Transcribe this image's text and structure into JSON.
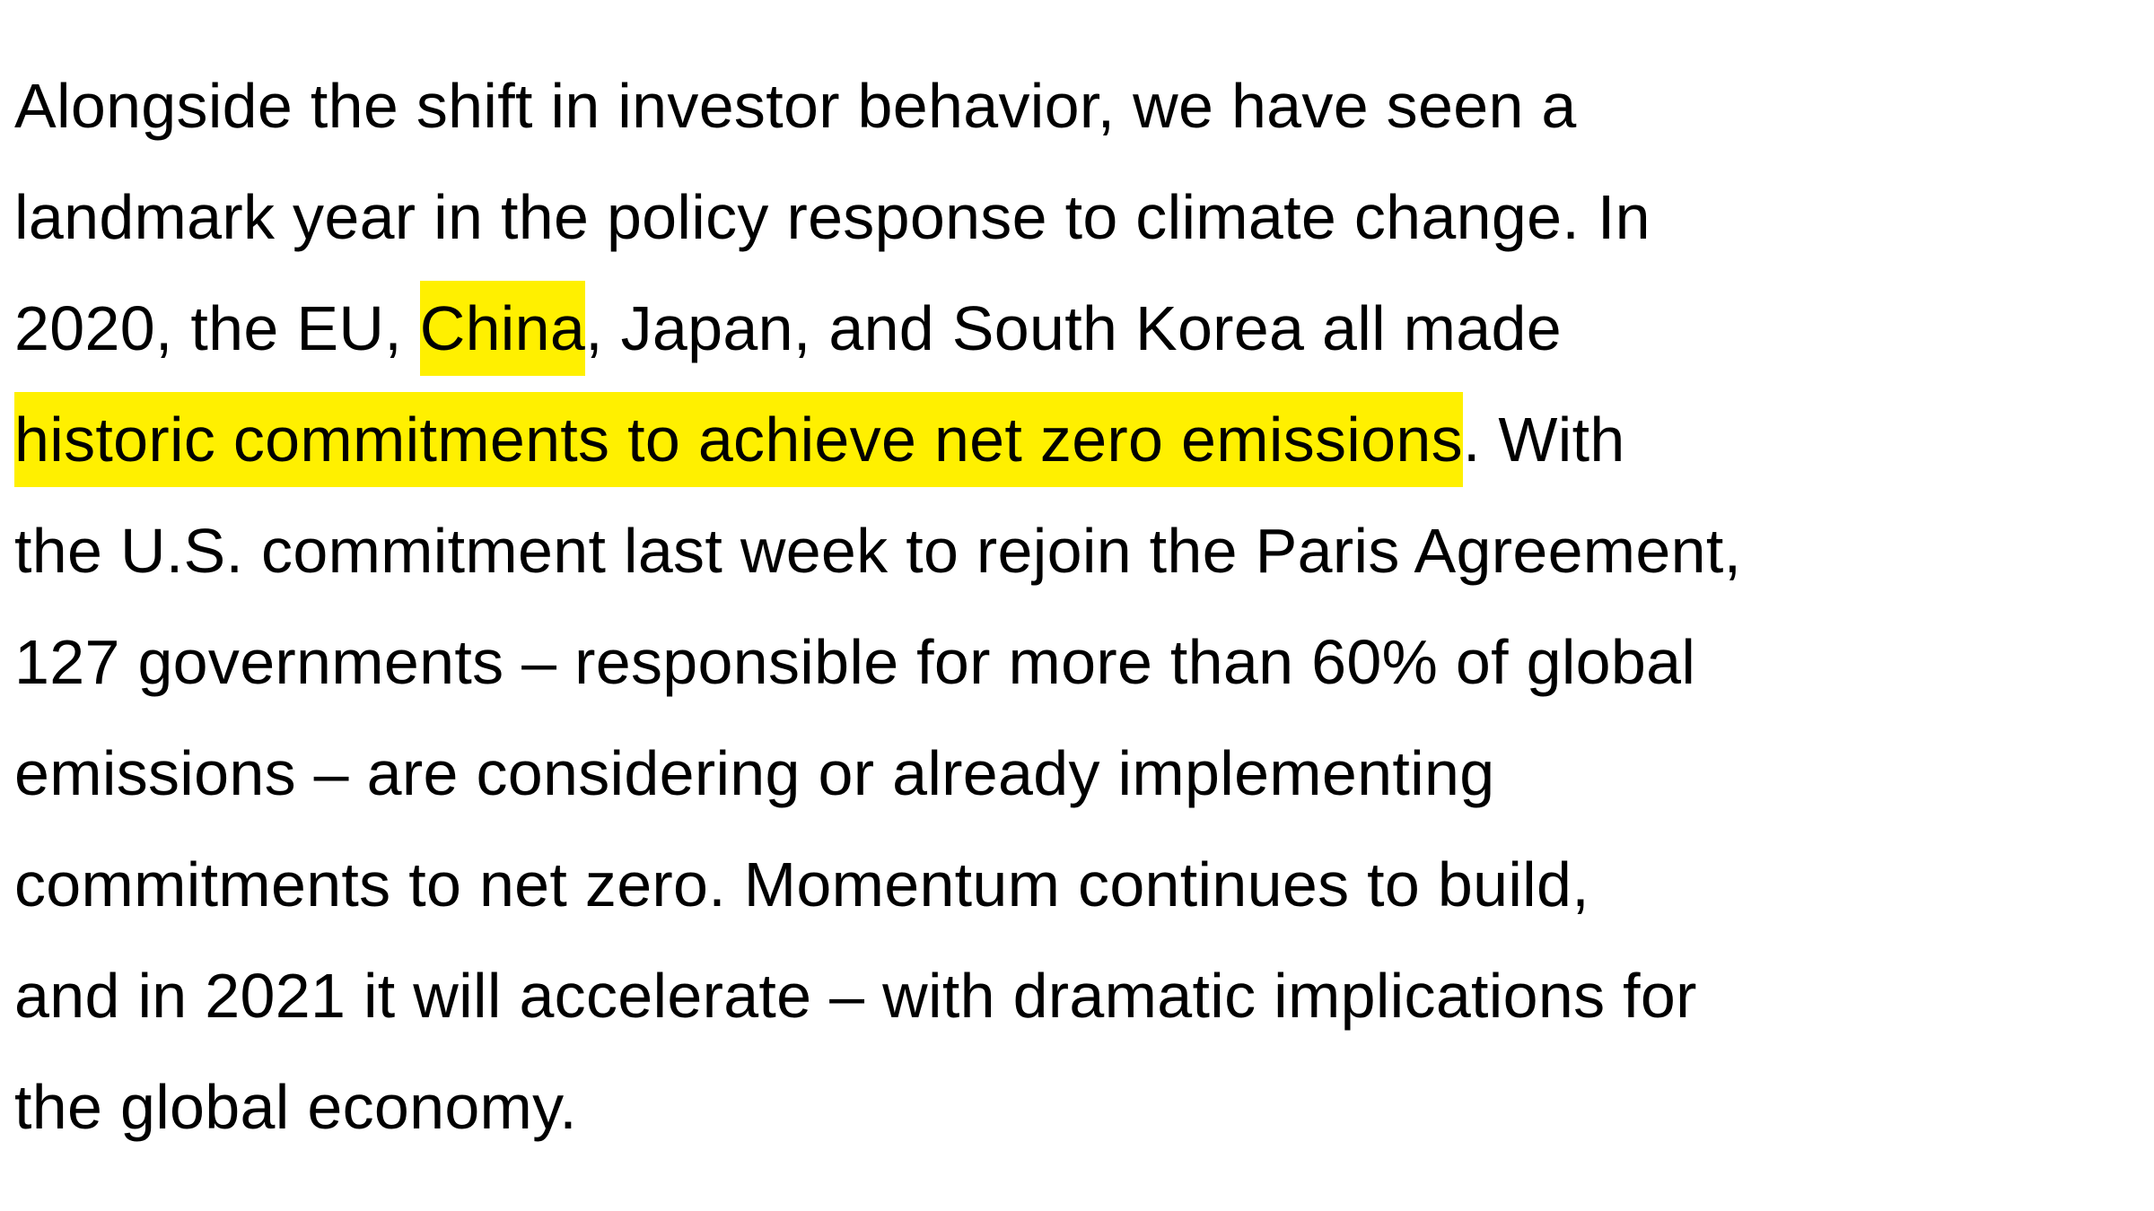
{
  "article": {
    "lines": [
      {
        "text": "Alongside the shift in investor behavior, we have seen a"
      },
      {
        "text": "landmark year in the policy response to climate change. In"
      },
      {
        "pre": "2020, the EU, ",
        "highlight": "China",
        "post": ", Japan, and South Korea all made"
      },
      {
        "pre": "",
        "highlight": "historic commitments to achieve net zero emissions",
        "post": ". With"
      },
      {
        "text": "the U.S. commitment last week to rejoin the Paris Agreement,"
      },
      {
        "text": "127 governments – responsible for more than 60% of global"
      },
      {
        "text": "emissions – are considering or already implementing"
      },
      {
        "text": "commitments to net zero. Momentum continues to build,"
      },
      {
        "text": "and in 2021 it will accelerate – with dramatic implications for"
      },
      {
        "text": "the global economy."
      }
    ],
    "colors": {
      "text": "#000000",
      "highlight": "#fff000",
      "background": "#ffffff"
    }
  }
}
